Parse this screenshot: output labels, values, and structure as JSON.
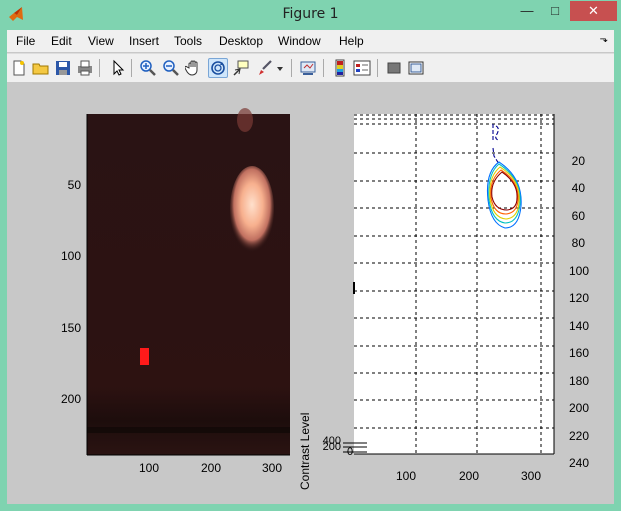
{
  "window": {
    "title": "Figure 1",
    "minimize": "—",
    "maximize": "□",
    "close": "✕"
  },
  "menu": [
    "File",
    "Edit",
    "View",
    "Insert",
    "Tools",
    "Desktop",
    "Window",
    "Help"
  ],
  "menu_overflow": "⬎",
  "toolbar": [
    {
      "name": "new-figure-icon"
    },
    {
      "name": "open-file-icon"
    },
    {
      "name": "save-icon"
    },
    {
      "name": "print-icon"
    },
    {
      "name": "edit-plot-arrow-icon"
    },
    {
      "name": "zoom-in-icon"
    },
    {
      "name": "zoom-out-icon"
    },
    {
      "name": "pan-hand-icon"
    },
    {
      "name": "rotate-3d-icon",
      "active": true
    },
    {
      "name": "data-cursor-icon"
    },
    {
      "name": "brush-icon"
    },
    {
      "name": "dropdown-arrow-icon"
    },
    {
      "name": "link-plot-icon"
    },
    {
      "name": "insert-colorbar-icon"
    },
    {
      "name": "insert-legend-icon"
    },
    {
      "name": "hide-plot-tools-icon"
    },
    {
      "name": "show-plot-tools-icon"
    }
  ],
  "left_axes": {
    "xticks": [
      "100",
      "200",
      "300"
    ],
    "yticks": [
      "50",
      "100",
      "150",
      "200"
    ]
  },
  "right_axes": {
    "xticks": [
      "100",
      "200",
      "300"
    ],
    "yticks_right": [
      "20",
      "40",
      "60",
      "80",
      "100",
      "120",
      "140",
      "160",
      "180",
      "200",
      "220",
      "240"
    ],
    "ylabel": "Contrast Level",
    "colorbar_ticks": [
      "400",
      "200",
      "0"
    ]
  },
  "colors": {
    "marker": "#ff1a1a",
    "contour1": "#00008f",
    "contour2": "#0070ff",
    "contour3": "#00c0c0",
    "contour4": "#e0d000",
    "contour5": "#ff6000",
    "contour6": "#8b0000"
  }
}
